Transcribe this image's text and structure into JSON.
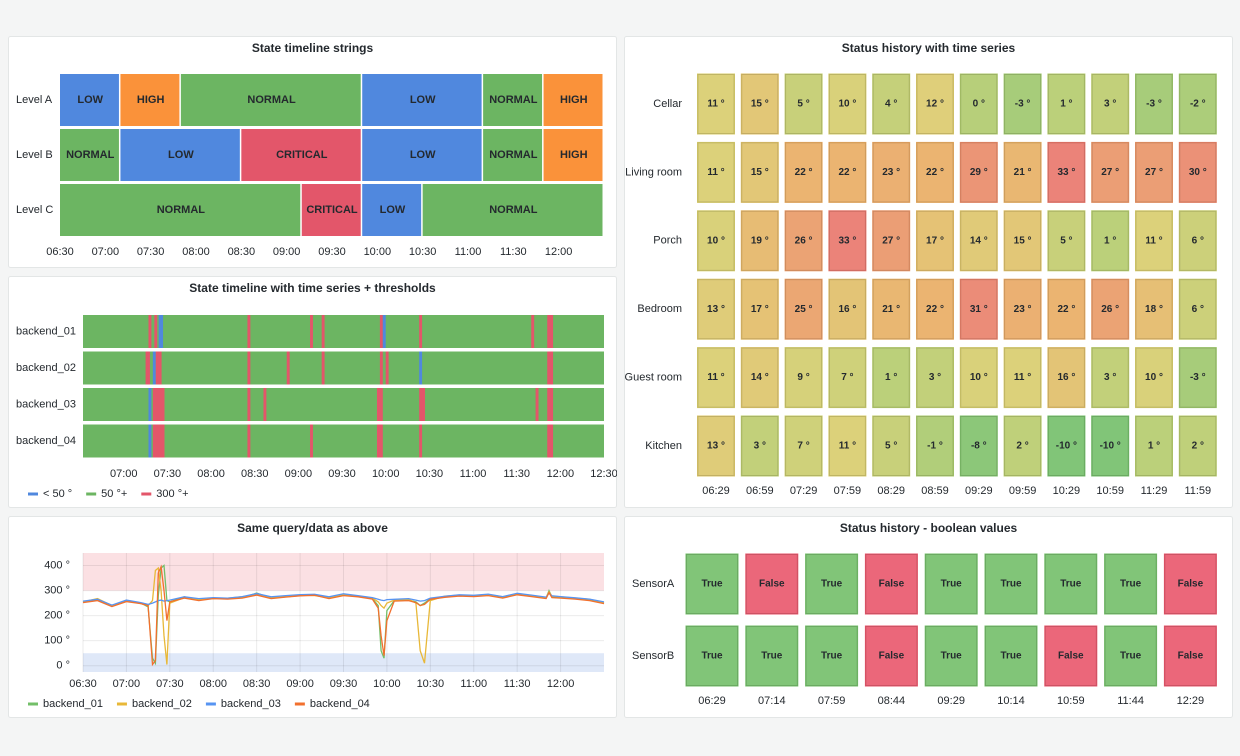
{
  "chart_data": [
    {
      "type": "state-timeline",
      "title": "State timeline strings",
      "xlim": [
        "06:30",
        "12:30"
      ],
      "xticks": [
        "06:30",
        "07:00",
        "07:30",
        "08:00",
        "08:30",
        "09:00",
        "09:30",
        "10:00",
        "10:30",
        "11:00",
        "11:30",
        "12:00"
      ],
      "state_colors": {
        "LOW": "#5088de",
        "HIGH": "#fa923a",
        "NORMAL": "#6cb562",
        "CRITICAL": "#e3566a"
      },
      "rows": [
        {
          "name": "Level A",
          "segments": [
            {
              "start": "06:30",
              "end": "07:10",
              "state": "LOW"
            },
            {
              "start": "07:10",
              "end": "07:50",
              "state": "HIGH"
            },
            {
              "start": "07:50",
              "end": "09:50",
              "state": "NORMAL"
            },
            {
              "start": "09:50",
              "end": "11:10",
              "state": "LOW"
            },
            {
              "start": "11:10",
              "end": "11:50",
              "state": "NORMAL"
            },
            {
              "start": "11:50",
              "end": "12:30",
              "state": "HIGH"
            }
          ]
        },
        {
          "name": "Level B",
          "segments": [
            {
              "start": "06:30",
              "end": "07:10",
              "state": "NORMAL"
            },
            {
              "start": "07:10",
              "end": "08:30",
              "state": "LOW"
            },
            {
              "start": "08:30",
              "end": "09:50",
              "state": "CRITICAL"
            },
            {
              "start": "09:50",
              "end": "11:10",
              "state": "LOW"
            },
            {
              "start": "11:10",
              "end": "11:50",
              "state": "NORMAL"
            },
            {
              "start": "11:50",
              "end": "12:30",
              "state": "HIGH"
            }
          ]
        },
        {
          "name": "Level C",
          "segments": [
            {
              "start": "06:30",
              "end": "09:10",
              "state": "NORMAL"
            },
            {
              "start": "09:10",
              "end": "09:50",
              "state": "CRITICAL"
            },
            {
              "start": "09:50",
              "end": "10:30",
              "state": "LOW"
            },
            {
              "start": "10:30",
              "end": "12:30",
              "state": "NORMAL"
            }
          ]
        }
      ]
    },
    {
      "type": "state-timeline",
      "title": "State timeline with time series + thresholds",
      "xlim": [
        "06:32",
        "12:30"
      ],
      "xticks": [
        "07:00",
        "07:30",
        "08:00",
        "08:30",
        "09:00",
        "09:30",
        "10:00",
        "10:30",
        "11:00",
        "11:30",
        "12:00",
        "12:30"
      ],
      "base_color": "#6cb562",
      "legend": [
        {
          "name": "< 50 °",
          "color": "#5088de"
        },
        {
          "name": "50 °+",
          "color": "#6cb562"
        },
        {
          "name": "300 °+",
          "color": "#e3566a"
        }
      ],
      "rows": [
        {
          "name": "backend_01",
          "segments": [
            {
              "start": "07:17",
              "end": "07:19",
              "color": "#e3566a"
            },
            {
              "start": "07:21",
              "end": "07:23",
              "color": "#e3566a"
            },
            {
              "start": "07:24",
              "end": "07:27",
              "color": "#5088de"
            },
            {
              "start": "08:25",
              "end": "08:27",
              "color": "#e3566a"
            },
            {
              "start": "09:08",
              "end": "09:10",
              "color": "#e3566a"
            },
            {
              "start": "09:16",
              "end": "09:18",
              "color": "#e3566a"
            },
            {
              "start": "09:56",
              "end": "09:58",
              "color": "#e3566a"
            },
            {
              "start": "09:58",
              "end": "10:00",
              "color": "#5088de"
            },
            {
              "start": "10:23",
              "end": "10:25",
              "color": "#e3566a"
            },
            {
              "start": "11:40",
              "end": "11:42",
              "color": "#e3566a"
            },
            {
              "start": "11:51",
              "end": "11:55",
              "color": "#e3566a"
            }
          ]
        },
        {
          "name": "backend_02",
          "segments": [
            {
              "start": "07:15",
              "end": "07:18",
              "color": "#e3566a"
            },
            {
              "start": "07:20",
              "end": "07:22",
              "color": "#5088de"
            },
            {
              "start": "07:22",
              "end": "07:26",
              "color": "#e3566a"
            },
            {
              "start": "08:25",
              "end": "08:27",
              "color": "#e3566a"
            },
            {
              "start": "08:52",
              "end": "08:54",
              "color": "#e3566a"
            },
            {
              "start": "09:16",
              "end": "09:18",
              "color": "#e3566a"
            },
            {
              "start": "09:56",
              "end": "09:58",
              "color": "#e3566a"
            },
            {
              "start": "10:00",
              "end": "10:02",
              "color": "#e3566a"
            },
            {
              "start": "10:23",
              "end": "10:25",
              "color": "#5088de"
            },
            {
              "start": "11:51",
              "end": "11:55",
              "color": "#e3566a"
            }
          ]
        },
        {
          "name": "backend_03",
          "segments": [
            {
              "start": "07:17",
              "end": "07:19",
              "color": "#5088de"
            },
            {
              "start": "07:20",
              "end": "07:28",
              "color": "#e3566a"
            },
            {
              "start": "08:25",
              "end": "08:27",
              "color": "#e3566a"
            },
            {
              "start": "08:36",
              "end": "08:38",
              "color": "#e3566a"
            },
            {
              "start": "09:54",
              "end": "09:58",
              "color": "#e3566a"
            },
            {
              "start": "10:23",
              "end": "10:27",
              "color": "#e3566a"
            },
            {
              "start": "11:43",
              "end": "11:45",
              "color": "#e3566a"
            },
            {
              "start": "11:51",
              "end": "11:55",
              "color": "#e3566a"
            }
          ]
        },
        {
          "name": "backend_04",
          "segments": [
            {
              "start": "07:17",
              "end": "07:19",
              "color": "#5088de"
            },
            {
              "start": "07:20",
              "end": "07:28",
              "color": "#e3566a"
            },
            {
              "start": "08:25",
              "end": "08:27",
              "color": "#e3566a"
            },
            {
              "start": "09:08",
              "end": "09:10",
              "color": "#e3566a"
            },
            {
              "start": "09:54",
              "end": "09:58",
              "color": "#e3566a"
            },
            {
              "start": "10:23",
              "end": "10:25",
              "color": "#e3566a"
            },
            {
              "start": "11:51",
              "end": "11:55",
              "color": "#e3566a"
            }
          ]
        }
      ]
    },
    {
      "type": "line",
      "title": "Same query/data as above",
      "grid": true,
      "xlim": [
        "06:30",
        "12:30"
      ],
      "xticks": [
        "06:30",
        "07:00",
        "07:30",
        "08:00",
        "08:30",
        "09:00",
        "09:30",
        "10:00",
        "10:30",
        "11:00",
        "11:30",
        "12:00"
      ],
      "ylim": [
        -25,
        450
      ],
      "yticks": [
        {
          "value": 0,
          "label": "0 °"
        },
        {
          "value": 100,
          "label": "100 °"
        },
        {
          "value": 200,
          "label": "200 °"
        },
        {
          "value": 300,
          "label": "300 °"
        },
        {
          "value": 400,
          "label": "400 °"
        }
      ],
      "threshold_bands": [
        {
          "to": 50,
          "color": "#dfe8f8"
        },
        {
          "from": 300,
          "color": "#fbe0e3"
        }
      ],
      "x": [
        "06:30",
        "06:40",
        "06:50",
        "07:00",
        "07:10",
        "07:15",
        "07:18",
        "07:20",
        "07:22",
        "07:24",
        "07:26",
        "07:28",
        "07:30",
        "07:40",
        "07:50",
        "08:00",
        "08:10",
        "08:20",
        "08:30",
        "08:40",
        "08:50",
        "09:00",
        "09:10",
        "09:20",
        "09:30",
        "09:40",
        "09:50",
        "09:54",
        "09:56",
        "09:58",
        "10:00",
        "10:05",
        "10:15",
        "10:20",
        "10:23",
        "10:26",
        "10:30",
        "10:40",
        "10:50",
        "11:00",
        "11:10",
        "11:20",
        "11:30",
        "11:40",
        "11:50",
        "11:52",
        "11:54",
        "12:00",
        "12:10",
        "12:20",
        "12:30"
      ],
      "series": [
        {
          "name": "backend_01",
          "color": "#73bf69",
          "values": [
            255,
            262,
            238,
            258,
            250,
            235,
            30,
            10,
            280,
            390,
            400,
            260,
            255,
            275,
            262,
            270,
            268,
            272,
            290,
            270,
            275,
            280,
            283,
            270,
            282,
            278,
            268,
            240,
            60,
            30,
            220,
            260,
            262,
            255,
            240,
            250,
            268,
            275,
            280,
            278,
            282,
            272,
            285,
            278,
            270,
            300,
            275,
            272,
            268,
            262,
            250
          ]
        },
        {
          "name": "backend_02",
          "color": "#e8b838",
          "values": [
            255,
            268,
            240,
            260,
            248,
            240,
            260,
            380,
            390,
            300,
            120,
            5,
            250,
            272,
            265,
            268,
            270,
            275,
            285,
            272,
            278,
            282,
            280,
            272,
            285,
            276,
            270,
            255,
            240,
            230,
            250,
            262,
            265,
            250,
            60,
            10,
            260,
            278,
            282,
            280,
            284,
            275,
            288,
            280,
            272,
            295,
            278,
            275,
            270,
            265,
            252
          ]
        },
        {
          "name": "backend_03",
          "color": "#5794f2",
          "values": [
            258,
            265,
            242,
            262,
            252,
            245,
            250,
            255,
            260,
            262,
            258,
            260,
            262,
            275,
            268,
            272,
            270,
            276,
            288,
            275,
            280,
            284,
            285,
            275,
            287,
            280,
            272,
            265,
            262,
            260,
            264,
            265,
            268,
            262,
            258,
            260,
            270,
            277,
            283,
            281,
            286,
            276,
            289,
            282,
            274,
            290,
            279,
            276,
            271,
            266,
            255
          ]
        },
        {
          "name": "backend_04",
          "color": "#f2702e",
          "values": [
            252,
            260,
            236,
            256,
            248,
            240,
            5,
            20,
            370,
            395,
            300,
            180,
            255,
            270,
            260,
            268,
            266,
            270,
            282,
            268,
            274,
            279,
            281,
            268,
            280,
            275,
            266,
            230,
            120,
            40,
            180,
            258,
            260,
            252,
            240,
            245,
            265,
            273,
            278,
            276,
            280,
            270,
            283,
            276,
            268,
            292,
            272,
            270,
            266,
            260,
            248
          ]
        }
      ]
    },
    {
      "type": "status-history",
      "title": "Status history with time series",
      "categories": [
        "06:29",
        "06:59",
        "07:29",
        "07:59",
        "08:29",
        "08:59",
        "09:29",
        "09:59",
        "10:29",
        "10:59",
        "11:29",
        "11:59"
      ],
      "color_scheme": [
        "#73bf69",
        "#b3cb6c",
        "#dacc6b",
        "#e9ab62",
        "#e9766a"
      ],
      "rows": [
        {
          "name": "Cellar",
          "values": [
            11,
            15,
            5,
            10,
            4,
            12,
            0,
            -3,
            1,
            3,
            -3,
            -2
          ],
          "value_labels": [
            "11 °",
            "15 °",
            "5 °",
            "10 °",
            "4 °",
            "12 °",
            "0 °",
            "-3 °",
            "1 °",
            "3 °",
            "-3 °",
            "-2 °"
          ]
        },
        {
          "name": "Living room",
          "values": [
            11,
            15,
            22,
            22,
            23,
            22,
            29,
            21,
            33,
            27,
            27,
            30
          ],
          "value_labels": [
            "11 °",
            "15 °",
            "22 °",
            "22 °",
            "23 °",
            "22 °",
            "29 °",
            "21 °",
            "33 °",
            "27 °",
            "27 °",
            "30 °"
          ]
        },
        {
          "name": "Porch",
          "values": [
            10,
            19,
            26,
            33,
            27,
            17,
            14,
            15,
            5,
            1,
            11,
            6
          ],
          "value_labels": [
            "10 °",
            "19 °",
            "26 °",
            "33 °",
            "27 °",
            "17 °",
            "14 °",
            "15 °",
            "5 °",
            "1 °",
            "11 °",
            "6 °"
          ]
        },
        {
          "name": "Bedroom",
          "values": [
            13,
            17,
            25,
            16,
            21,
            22,
            31,
            23,
            22,
            26,
            18,
            6
          ],
          "value_labels": [
            "13 °",
            "17 °",
            "25 °",
            "16 °",
            "21 °",
            "22 °",
            "31 °",
            "23 °",
            "22 °",
            "26 °",
            "18 °",
            "6 °"
          ]
        },
        {
          "name": "Guest room",
          "values": [
            11,
            14,
            9,
            7,
            1,
            3,
            10,
            11,
            16,
            3,
            10,
            -3
          ],
          "value_labels": [
            "11 °",
            "14 °",
            "9 °",
            "7 °",
            "1 °",
            "3 °",
            "10 °",
            "11 °",
            "16 °",
            "3 °",
            "10 °",
            "-3 °"
          ]
        },
        {
          "name": "Kitchen",
          "values": [
            13,
            3,
            7,
            11,
            5,
            -1,
            -8,
            2,
            -10,
            -10,
            1,
            2
          ],
          "value_labels": [
            "13 °",
            "3 °",
            "7 °",
            "11 °",
            "5 °",
            "-1 °",
            "-8 °",
            "2 °",
            "-10 °",
            "-10 °",
            "1 °",
            "2 °"
          ]
        }
      ]
    },
    {
      "type": "status-history",
      "title": "Status history - boolean values",
      "categories": [
        "06:29",
        "07:14",
        "07:59",
        "08:44",
        "09:29",
        "10:14",
        "10:59",
        "11:44",
        "12:29"
      ],
      "true_color": "#73bf69",
      "false_color": "#e9566b",
      "rows": [
        {
          "name": "SensorA",
          "values": [
            true,
            false,
            true,
            false,
            true,
            true,
            true,
            true,
            false
          ],
          "value_labels": [
            "True",
            "False",
            "True",
            "False",
            "True",
            "True",
            "True",
            "True",
            "False"
          ]
        },
        {
          "name": "SensorB",
          "values": [
            true,
            true,
            true,
            false,
            true,
            true,
            false,
            true,
            false
          ],
          "value_labels": [
            "True",
            "True",
            "True",
            "False",
            "True",
            "True",
            "False",
            "True",
            "False"
          ]
        }
      ]
    }
  ]
}
